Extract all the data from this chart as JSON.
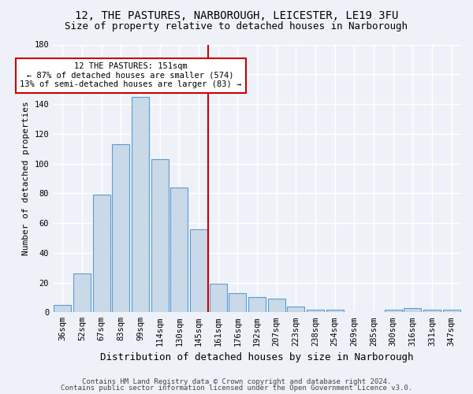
{
  "title": "12, THE PASTURES, NARBOROUGH, LEICESTER, LE19 3FU",
  "subtitle": "Size of property relative to detached houses in Narborough",
  "xlabel": "Distribution of detached houses by size in Narborough",
  "ylabel": "Number of detached properties",
  "bar_labels": [
    "36sqm",
    "52sqm",
    "67sqm",
    "83sqm",
    "99sqm",
    "114sqm",
    "130sqm",
    "145sqm",
    "161sqm",
    "176sqm",
    "192sqm",
    "207sqm",
    "223sqm",
    "238sqm",
    "254sqm",
    "269sqm",
    "285sqm",
    "300sqm",
    "316sqm",
    "331sqm",
    "347sqm"
  ],
  "bar_values": [
    5,
    26,
    79,
    113,
    145,
    103,
    84,
    56,
    19,
    13,
    10,
    9,
    4,
    2,
    2,
    0,
    0,
    2,
    3,
    2,
    2
  ],
  "bar_color": "#c9d9e8",
  "bar_edge_color": "#5b9bd5",
  "annotation_text": "12 THE PASTURES: 151sqm\n← 87% of detached houses are smaller (574)\n13% of semi-detached houses are larger (83) →",
  "annotation_box_color": "#ffffff",
  "annotation_box_edge": "#cc0000",
  "line_color": "#cc0000",
  "line_x_index": 7.5,
  "ylim": [
    0,
    180
  ],
  "yticks": [
    0,
    20,
    40,
    60,
    80,
    100,
    120,
    140,
    160,
    180
  ],
  "footer1": "Contains HM Land Registry data © Crown copyright and database right 2024.",
  "footer2": "Contains public sector information licensed under the Open Government Licence v3.0.",
  "bg_color": "#eef2f8",
  "grid_color": "#ffffff",
  "title_fontsize": 10,
  "subtitle_fontsize": 9,
  "xlabel_fontsize": 9,
  "ylabel_fontsize": 8,
  "tick_fontsize": 7.5,
  "annotation_fontsize": 7.5,
  "footer_fontsize": 6.5
}
